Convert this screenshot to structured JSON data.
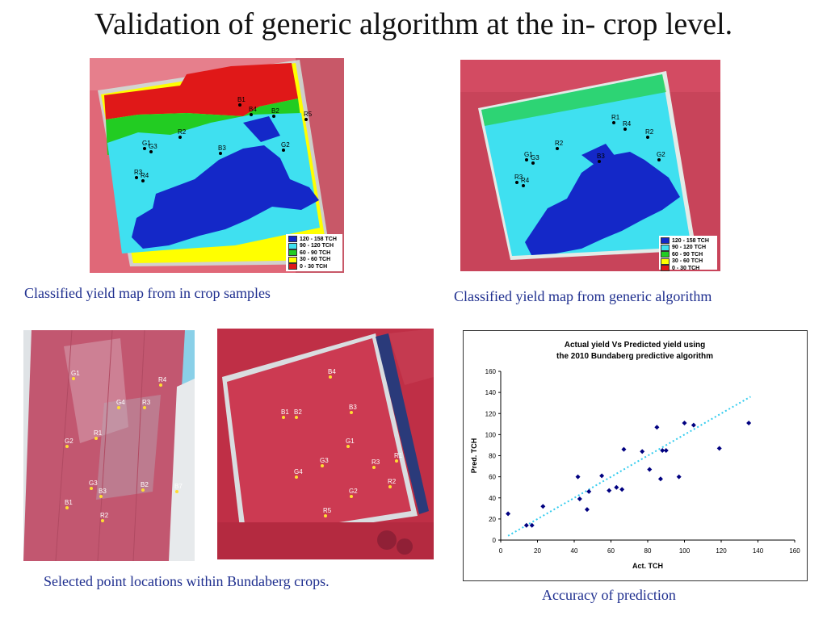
{
  "page": {
    "title": "Validation of generic algorithm at the in- crop level.",
    "captions": {
      "map_samples": "Classified yield map from in crop samples",
      "map_generic": "Classified yield map from generic algorithm",
      "points": "Selected point locations within Bundaberg crops.",
      "accuracy": "Accuracy of prediction"
    }
  },
  "legend": {
    "colors": [
      "#1428c8",
      "#3fe0f0",
      "#22cc22",
      "#ffff00",
      "#e01818"
    ],
    "map1": [
      "120 - 158 TCH",
      "90 - 120 TCH",
      "60 - 90 TCH",
      "30 - 60 TCH",
      "0 - 30 TCH"
    ],
    "map2": [
      "120 - 158 TCH",
      "90 - 120 TCH",
      "60 - 90 TCH",
      "30 - 60 TCH",
      "0 - 30 TCH"
    ]
  },
  "map_labels": {
    "map1": [
      "B1",
      "B4",
      "B2",
      "R5",
      "R2",
      "G1",
      "G3",
      "R3",
      "R4",
      "G2",
      "B3"
    ],
    "map2": [
      "R1",
      "R4",
      "R2",
      "R2",
      "G1",
      "G3",
      "R3",
      "R4",
      "G2",
      "B3"
    ],
    "photo1": [
      "R4",
      "G4",
      "R3",
      "R1",
      "G2",
      "G3",
      "B3",
      "B1",
      "R2",
      "B2",
      "B7",
      "G1"
    ],
    "photo2": [
      "B4",
      "B1",
      "B2",
      "B3",
      "G1",
      "G3",
      "G4",
      "R3",
      "R1",
      "R2",
      "G2",
      "R5"
    ]
  },
  "chart_data": {
    "type": "scatter",
    "title": "Actual yield Vs Predicted yield using\nthe 2010 Bundaberg predictive algorithm",
    "title_lines": [
      "Actual yield Vs Predicted yield using",
      "the 2010 Bundaberg predictive algorithm"
    ],
    "xlabel": "Act. TCH",
    "ylabel": "Pred. TCH",
    "xlim": [
      0,
      160
    ],
    "ylim": [
      0,
      160
    ],
    "xticks": [
      0,
      20,
      40,
      60,
      80,
      100,
      120,
      140,
      160
    ],
    "yticks": [
      0,
      20,
      40,
      60,
      80,
      100,
      120,
      140,
      160
    ],
    "grid": false,
    "legend": false,
    "marker_color": "#000080",
    "trendline_color": "#33ccee",
    "trendline": {
      "style": "dotted",
      "x": [
        4,
        136
      ],
      "y": [
        4,
        136
      ]
    },
    "points": [
      [
        4,
        25
      ],
      [
        14,
        14
      ],
      [
        17,
        14
      ],
      [
        23,
        32
      ],
      [
        42,
        60
      ],
      [
        43,
        39
      ],
      [
        47,
        29
      ],
      [
        48,
        46
      ],
      [
        55,
        61
      ],
      [
        59,
        47
      ],
      [
        63,
        50
      ],
      [
        66,
        48
      ],
      [
        67,
        86
      ],
      [
        77,
        84
      ],
      [
        81,
        67
      ],
      [
        85,
        107
      ],
      [
        87,
        58
      ],
      [
        88,
        85
      ],
      [
        90,
        85
      ],
      [
        97,
        60
      ],
      [
        100,
        111
      ],
      [
        105,
        109
      ],
      [
        119,
        87
      ],
      [
        135,
        111
      ]
    ]
  }
}
